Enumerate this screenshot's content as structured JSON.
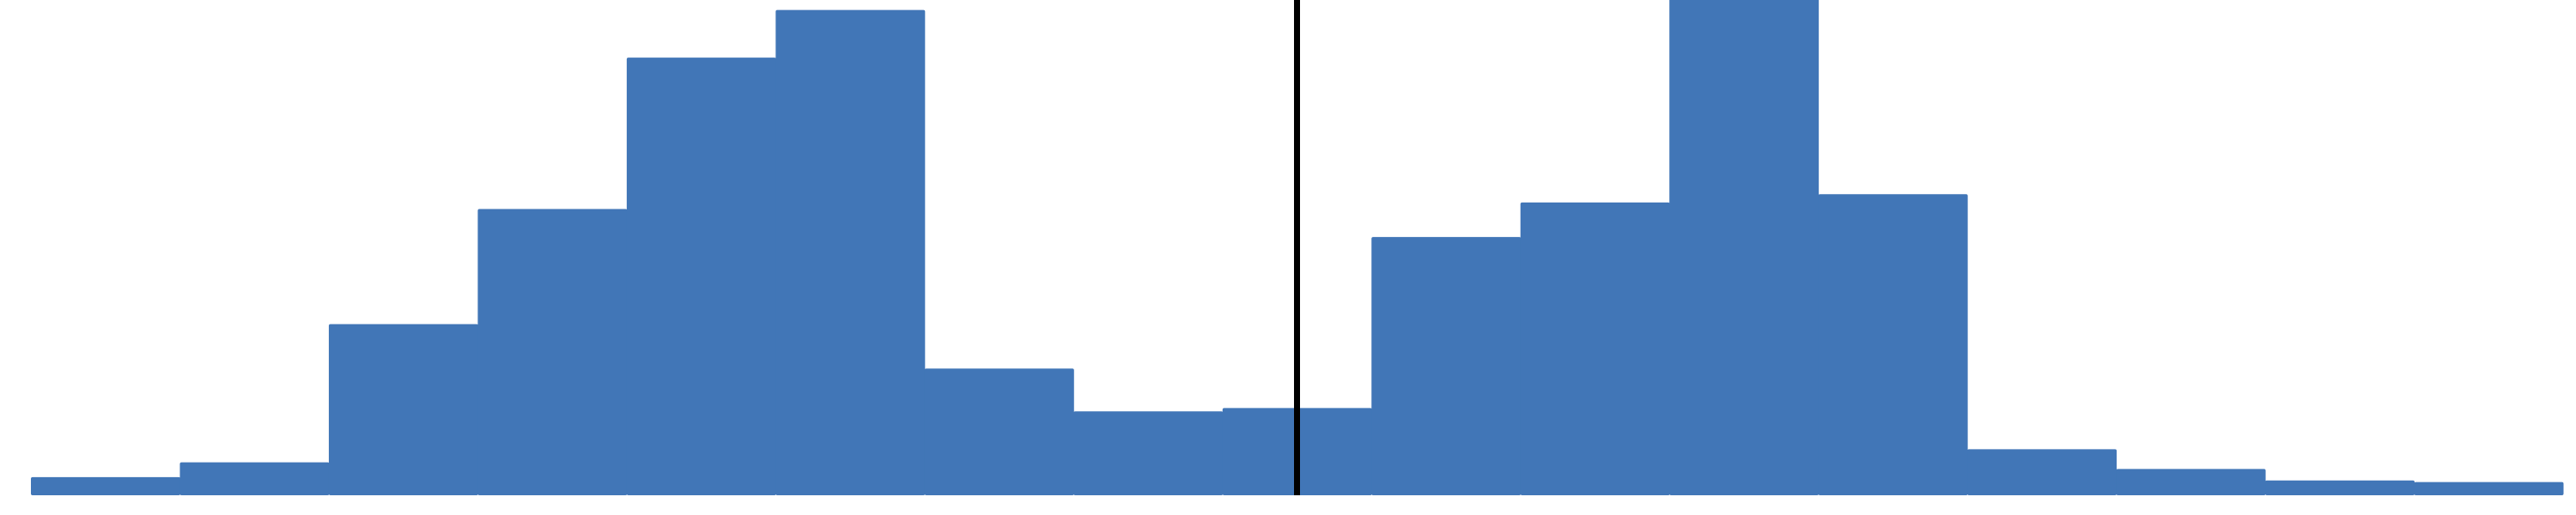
{
  "chart_data": {
    "type": "histogram",
    "bins": [
      0,
      1,
      2,
      3,
      4,
      5,
      6,
      7,
      8,
      9,
      10,
      11,
      12,
      13,
      14,
      15,
      16,
      17
    ],
    "values": [
      11,
      20,
      104,
      174,
      266,
      295,
      77,
      51,
      53,
      157,
      178,
      310,
      183,
      28,
      16,
      9,
      8
    ],
    "color": "#4176b7",
    "xlim": [
      0,
      17
    ],
    "ylim": [
      0,
      300
    ],
    "vline": 8.5,
    "vline_color": "#000000"
  }
}
